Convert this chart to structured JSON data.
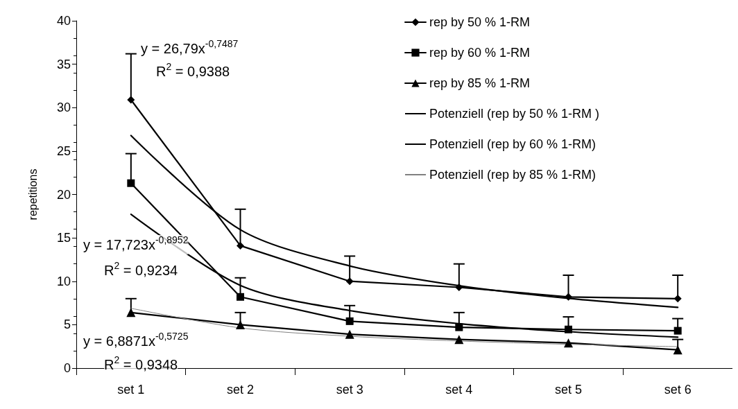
{
  "chart_data": {
    "type": "line",
    "ylabel": "repetitions",
    "categories": [
      "set 1",
      "set 2",
      "set 3",
      "set 4",
      "set 5",
      "set 6"
    ],
    "ylim": [
      0,
      40
    ],
    "yticks": [
      0,
      5,
      10,
      15,
      20,
      25,
      30,
      35,
      40
    ],
    "grid": false,
    "legend": "top right",
    "series": [
      {
        "name": "rep by 50 % 1-RM",
        "color": "#000000",
        "marker": "diamond",
        "values": [
          30.9,
          14.1,
          10.0,
          9.3,
          8.2,
          8.0
        ],
        "errors": [
          [
            30.9,
            36.2
          ],
          [
            14.1,
            18.3
          ],
          [
            10.0,
            12.9
          ],
          [
            9.3,
            12.0
          ],
          [
            8.2,
            10.7
          ],
          [
            8.0,
            10.7
          ]
        ]
      },
      {
        "name": "rep by 60 % 1-RM",
        "color": "#000000",
        "marker": "square",
        "values": [
          21.3,
          8.2,
          5.4,
          4.7,
          4.45,
          4.3
        ],
        "errors": [
          [
            21.3,
            24.7
          ],
          [
            8.2,
            10.4
          ],
          [
            5.4,
            7.2
          ],
          [
            4.7,
            6.4
          ],
          [
            4.45,
            5.9
          ],
          [
            4.3,
            5.7
          ]
        ]
      },
      {
        "name": "rep by 85 % 1-RM",
        "color": "#000000",
        "marker": "triangle",
        "values": [
          6.4,
          5.0,
          3.9,
          3.3,
          2.9,
          2.1
        ],
        "errors": [
          [
            6.4,
            8.0
          ],
          [
            5.0,
            6.4
          ],
          null,
          null,
          null,
          [
            2.1,
            3.3
          ]
        ]
      },
      {
        "name": "Potenziell (rep by 50 % 1-RM )",
        "color": "#000000",
        "marker": "none",
        "values": [
          26.79,
          15.94,
          11.77,
          9.49,
          8.03,
          7.0
        ]
      },
      {
        "name": "Potenziell (rep by 60 % 1-RM)",
        "color": "#000000",
        "marker": "none",
        "values": [
          17.72,
          9.53,
          6.63,
          5.12,
          4.19,
          3.56
        ]
      },
      {
        "name": "Potenziell (rep by 85 % 1-RM)",
        "color": "#808080",
        "marker": "none",
        "values": [
          6.89,
          4.63,
          3.67,
          3.12,
          2.74,
          2.47
        ]
      }
    ],
    "annotations": [
      "y = 26,79x$^{-0,7487}$",
      "R$^{2}$ = 0,9388",
      "y = 17,723x$^{-0,8952}$",
      "R$^{2}$ = 0,9234",
      "y = 6,8871x$^{-0,5725}$",
      "R$^{2}$ = 0,9348"
    ]
  }
}
